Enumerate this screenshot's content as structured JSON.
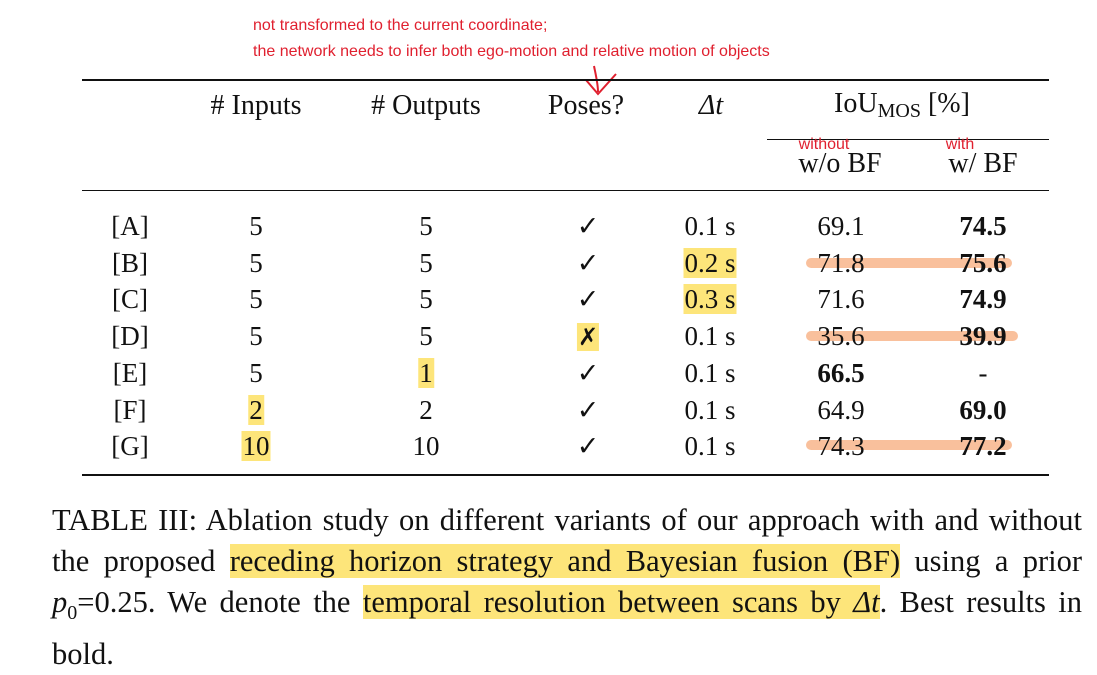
{
  "annotations": {
    "note_line1": "not transformed to the current coordinate;",
    "note_line2": "the network needs to infer both ego-motion and relative motion of objects",
    "without_label": "without",
    "with_label": "with"
  },
  "table": {
    "headers": {
      "inputs": "# Inputs",
      "outputs": "# Outputs",
      "poses": "Poses?",
      "dt": "Δt",
      "iou_main": "IoU",
      "iou_sub": "MOS",
      "iou_unit": "[%]",
      "wo_bf": "w/o BF",
      "w_bf": "w/ BF"
    },
    "rows": [
      {
        "id": "[A]",
        "inputs": "5",
        "outputs": "5",
        "poses": "✓",
        "dt": "0.1 s",
        "wo_bf": "69.1",
        "w_bf": "74.5"
      },
      {
        "id": "[B]",
        "inputs": "5",
        "outputs": "5",
        "poses": "✓",
        "dt": "0.2 s",
        "wo_bf": "71.8",
        "w_bf": "75.6"
      },
      {
        "id": "[C]",
        "inputs": "5",
        "outputs": "5",
        "poses": "✓",
        "dt": "0.3 s",
        "wo_bf": "71.6",
        "w_bf": "74.9"
      },
      {
        "id": "[D]",
        "inputs": "5",
        "outputs": "5",
        "poses": "✗",
        "dt": "0.1 s",
        "wo_bf": "35.6",
        "w_bf": "39.9"
      },
      {
        "id": "[E]",
        "inputs": "5",
        "outputs": "1",
        "poses": "✓",
        "dt": "0.1 s",
        "wo_bf": "66.5",
        "w_bf": "-"
      },
      {
        "id": "[F]",
        "inputs": "2",
        "outputs": "2",
        "poses": "✓",
        "dt": "0.1 s",
        "wo_bf": "64.9",
        "w_bf": "69.0"
      },
      {
        "id": "[G]",
        "inputs": "10",
        "outputs": "10",
        "poses": "✓",
        "dt": "0.1 s",
        "wo_bf": "74.3",
        "w_bf": "77.2"
      }
    ]
  },
  "caption": {
    "p1": "TABLE III: Ablation study on different variants of our approach with and without the proposed ",
    "h1": "receding horizon strategy and Bayesian fusion (BF)",
    "p2": " using a prior ",
    "prior_var": "p",
    "prior_sub": "0",
    "prior_val": "=0.25. We denote the ",
    "h2a": "temporal resolution between scans by ",
    "h2_var": "Δt",
    "p3": ". Best results in bold."
  },
  "colors": {
    "highlight": "#fde57a",
    "annotation_red": "#e0202f",
    "strike_orange": "#f5965a"
  }
}
